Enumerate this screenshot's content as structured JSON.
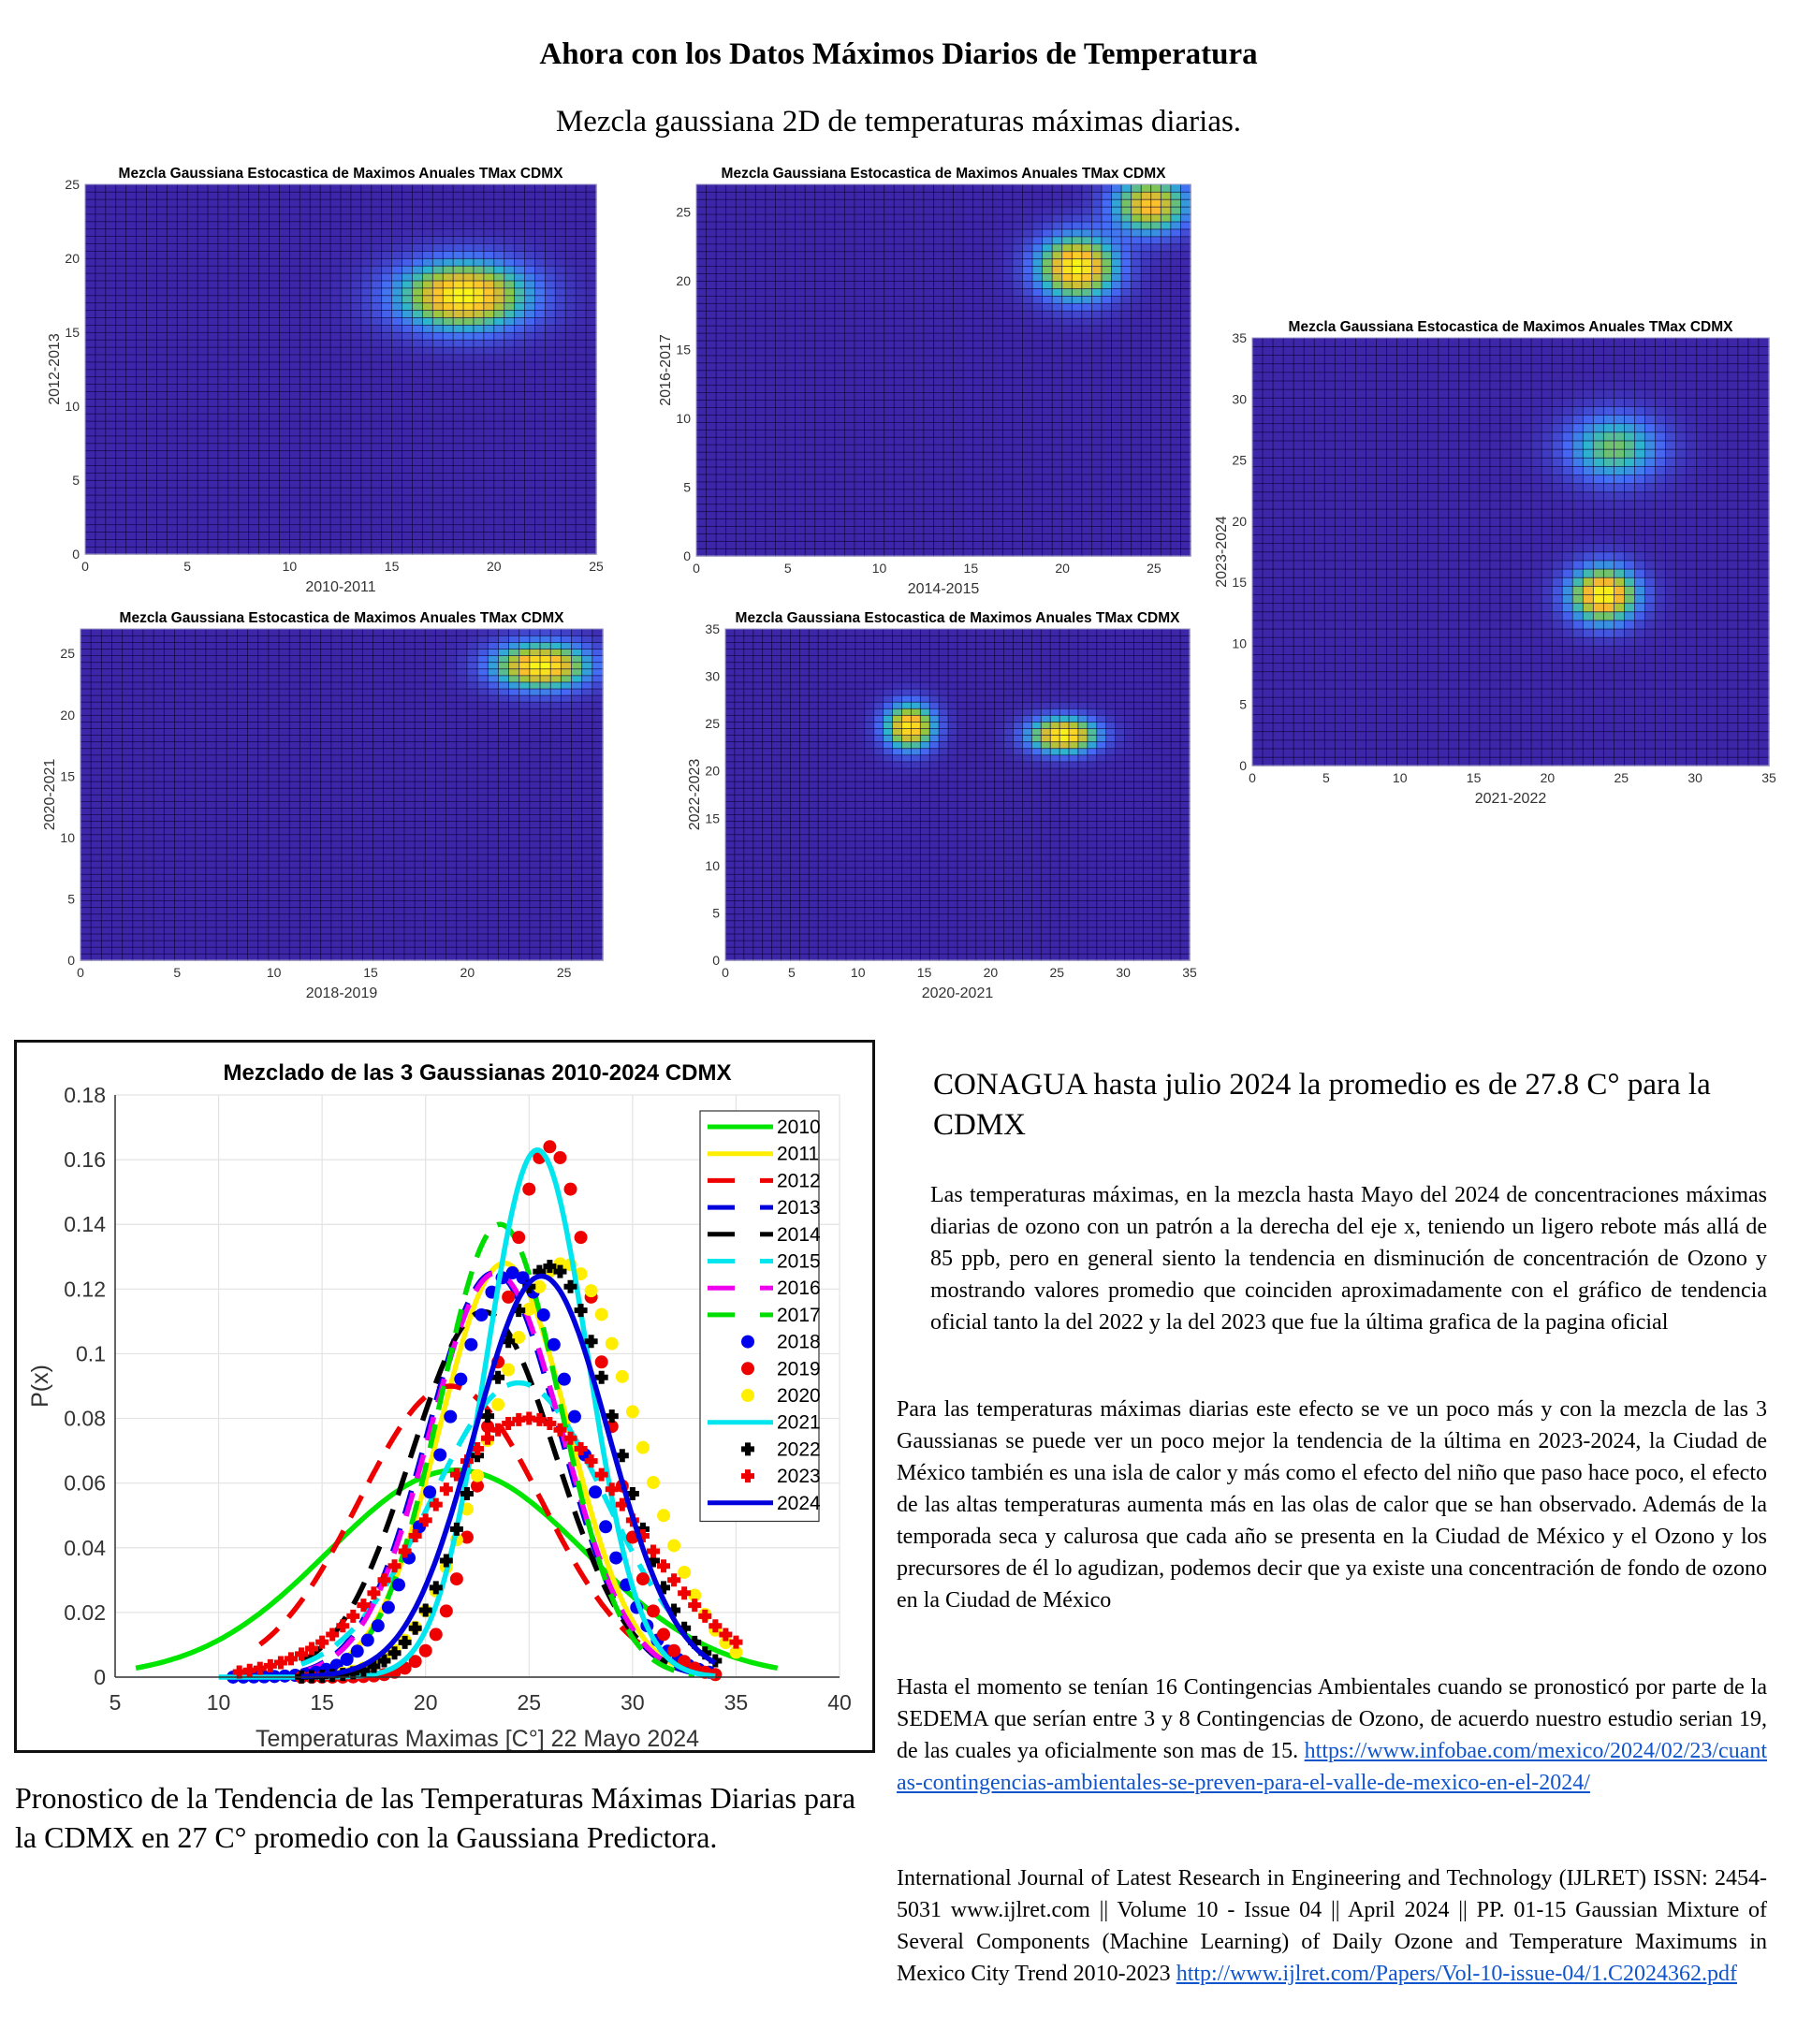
{
  "header": {
    "title": "Ahora con los Datos Máximos Diarios de Temperatura",
    "subtitle": "Mezcla gaussiana 2D de temperaturas máximas diarias."
  },
  "chart_data": [
    {
      "id": "heatmap-1",
      "type": "heatmap",
      "title": "Mezcla Gaussiana Estocastica de Maximos Anuales TMax CDMX",
      "xlabel": "2010-2011",
      "ylabel": "2012-2013",
      "xlim": [
        0,
        25
      ],
      "ylim": [
        0,
        25
      ],
      "xticks": [
        "0",
        "5",
        "10",
        "15",
        "20",
        "25"
      ],
      "yticks": [
        "0",
        "5",
        "10",
        "15",
        "20",
        "25"
      ],
      "peaks": [
        {
          "x": 18.5,
          "y": 17.5,
          "sx": 2.2,
          "sy": 1.6,
          "amp": 1.0
        }
      ],
      "colormap": [
        "#3e26a8",
        "#4669f5",
        "#2db5ce",
        "#8fc840",
        "#fbb92e",
        "#f9fb15"
      ]
    },
    {
      "id": "heatmap-2",
      "type": "heatmap",
      "title": "Mezcla Gaussiana Estocastica de Maximos Anuales TMax CDMX",
      "xlabel": "2014-2015",
      "ylabel": "2016-2017",
      "xlim": [
        0,
        27
      ],
      "ylim": [
        0,
        27
      ],
      "xticks": [
        "0",
        "5",
        "10",
        "15",
        "20",
        "25"
      ],
      "yticks": [
        "0",
        "5",
        "10",
        "15",
        "20",
        "25"
      ],
      "peaks": [
        {
          "x": 20.8,
          "y": 21.0,
          "sx": 1.5,
          "sy": 1.6,
          "amp": 1.0
        },
        {
          "x": 24.8,
          "y": 25.5,
          "sx": 1.4,
          "sy": 1.4,
          "amp": 0.85
        }
      ],
      "colormap": [
        "#3e26a8",
        "#4669f5",
        "#2db5ce",
        "#8fc840",
        "#fbb92e",
        "#f9fb15"
      ]
    },
    {
      "id": "heatmap-3",
      "type": "heatmap",
      "title": "Mezcla Gaussiana Estocastica de Maximos Anuales TMax CDMX",
      "xlabel": "2021-2022",
      "ylabel": "2023-2024",
      "xlim": [
        0,
        35
      ],
      "ylim": [
        0,
        35
      ],
      "xticks": [
        "0",
        "5",
        "10",
        "15",
        "20",
        "25",
        "30",
        "35"
      ],
      "yticks": [
        "0",
        "5",
        "10",
        "15",
        "20",
        "25",
        "30",
        "35"
      ],
      "peaks": [
        {
          "x": 23.8,
          "y": 14.0,
          "sx": 1.6,
          "sy": 1.6,
          "amp": 1.0
        },
        {
          "x": 24.5,
          "y": 26.0,
          "sx": 2.2,
          "sy": 1.9,
          "amp": 0.55
        }
      ],
      "colormap": [
        "#3e26a8",
        "#4669f5",
        "#2db5ce",
        "#8fc840",
        "#fbb92e",
        "#f9fb15"
      ]
    },
    {
      "id": "heatmap-4",
      "type": "heatmap",
      "title": "Mezcla Gaussiana Estocastica de Maximos Anuales TMax CDMX",
      "xlabel": "2018-2019",
      "ylabel": "2020-2021",
      "xlim": [
        0,
        27
      ],
      "ylim": [
        0,
        27
      ],
      "xticks": [
        "0",
        "5",
        "10",
        "15",
        "20",
        "25"
      ],
      "yticks": [
        "0",
        "5",
        "10",
        "15",
        "20",
        "25"
      ],
      "peaks": [
        {
          "x": 23.8,
          "y": 24.0,
          "sx": 1.7,
          "sy": 1.3,
          "amp": 1.0
        }
      ],
      "colormap": [
        "#3e26a8",
        "#4669f5",
        "#2db5ce",
        "#8fc840",
        "#fbb92e",
        "#f9fb15"
      ]
    },
    {
      "id": "heatmap-5",
      "type": "heatmap",
      "title": "Mezcla Gaussiana Estocastica de Maximos Anuales TMax CDMX",
      "xlabel": "2020-2021",
      "ylabel": "2022-2023",
      "xlim": [
        0,
        35
      ],
      "ylim": [
        0,
        35
      ],
      "xticks": [
        "0",
        "5",
        "10",
        "15",
        "20",
        "25",
        "30",
        "35"
      ],
      "yticks": [
        "0",
        "5",
        "10",
        "15",
        "20",
        "25",
        "30",
        "35"
      ],
      "peaks": [
        {
          "x": 13.9,
          "y": 24.7,
          "sx": 1.3,
          "sy": 1.7,
          "amp": 0.95
        },
        {
          "x": 25.5,
          "y": 23.8,
          "sx": 1.8,
          "sy": 1.3,
          "amp": 1.0
        }
      ],
      "colormap": [
        "#3e26a8",
        "#4669f5",
        "#2db5ce",
        "#8fc840",
        "#fbb92e",
        "#f9fb15"
      ]
    },
    {
      "id": "line-chart",
      "type": "line",
      "title": "Mezclado de las 3 Gaussianas 2010-2024 CDMX",
      "xlabel": "Temperaturas Maximas [C°] 22 Mayo 2024",
      "ylabel": "P(x)",
      "xlim": [
        5,
        40
      ],
      "ylim": [
        0,
        0.18
      ],
      "xticks": [
        "5",
        "10",
        "15",
        "20",
        "25",
        "30",
        "35",
        "40"
      ],
      "yticks": [
        "0",
        "0.02",
        "0.04",
        "0.06",
        "0.08",
        "0.1",
        "0.12",
        "0.14",
        "0.16",
        "0.18"
      ],
      "grid": true,
      "legend_position": "top-right",
      "series": [
        {
          "name": "2010",
          "color": "#00e600",
          "style": "solid",
          "mean": 21.5,
          "sigma": 6.2,
          "peak": 0.064,
          "xrange": [
            6,
            37
          ]
        },
        {
          "name": "2011",
          "color": "#ffee00",
          "style": "solid",
          "mean": 23.8,
          "sigma": 3.1,
          "peak": 0.128,
          "xrange": [
            14,
            34
          ]
        },
        {
          "name": "2012",
          "color": "#ee0000",
          "style": "dashed",
          "mean": 21.2,
          "sigma": 4.4,
          "peak": 0.09,
          "xrange": [
            12,
            31
          ]
        },
        {
          "name": "2013",
          "color": "#0000dd",
          "style": "dashed",
          "mean": 23.3,
          "sigma": 3.2,
          "peak": 0.125,
          "xrange": [
            14,
            33
          ]
        },
        {
          "name": "2014",
          "color": "#000000",
          "style": "dashed",
          "mean": 22.8,
          "sigma": 3.5,
          "peak": 0.113,
          "xrange": [
            14,
            33
          ]
        },
        {
          "name": "2015",
          "color": "#00e5ee",
          "style": "dashed",
          "mean": 24.5,
          "sigma": 4.2,
          "peak": 0.091,
          "xrange": [
            14,
            32
          ]
        },
        {
          "name": "2016",
          "color": "#ee00ee",
          "style": "dashed",
          "mean": 23.4,
          "sigma": 3.2,
          "peak": 0.125,
          "xrange": [
            14,
            32
          ]
        },
        {
          "name": "2017",
          "color": "#00dd00",
          "style": "dashed",
          "mean": 23.6,
          "sigma": 2.9,
          "peak": 0.14,
          "xrange": [
            16,
            33
          ]
        },
        {
          "name": "2018",
          "color": "#0000ee",
          "style": "dots",
          "mean": 24.2,
          "sigma": 3.2,
          "peak": 0.125,
          "xrange": [
            10.7,
            34
          ]
        },
        {
          "name": "2019",
          "color": "#ee0000",
          "style": "dots",
          "mean": 26.0,
          "sigma": 2.45,
          "peak": 0.164,
          "xrange": [
            14,
            34
          ]
        },
        {
          "name": "2020",
          "color": "#ffee00",
          "style": "dots",
          "mean": 26.7,
          "sigma": 3.5,
          "peak": 0.128,
          "xrange": [
            16,
            35
          ]
        },
        {
          "name": "2021",
          "color": "#00e5ee",
          "style": "solid",
          "mean": 25.4,
          "sigma": 2.45,
          "peak": 0.163,
          "xrange": [
            10,
            34
          ]
        },
        {
          "name": "2022",
          "color": "#000000",
          "style": "plus",
          "mean": 26.0,
          "sigma": 3.15,
          "peak": 0.127,
          "xrange": [
            14,
            34
          ]
        },
        {
          "name": "2023",
          "color": "#ee0000",
          "style": "plus",
          "mean": 25.0,
          "sigma": 5.0,
          "peak": 0.08,
          "xrange": [
            11,
            35
          ]
        },
        {
          "name": "2024",
          "color": "#0000dd",
          "style": "solid",
          "mean": 25.6,
          "sigma": 3.25,
          "peak": 0.124,
          "xrange": [
            14,
            34
          ]
        }
      ]
    }
  ],
  "right_text": {
    "conagua": "CONAGUA hasta julio 2024 la promedio es de 27.8 C° para la CDMX",
    "para1": "Las temperaturas máximas, en la mezcla hasta Mayo del 2024 de concentraciones máximas diarias de ozono con un patrón a la derecha del eje x, teniendo un ligero rebote más allá de 85 ppb, pero en general siento la tendencia en disminución de concentración de Ozono y mostrando valores promedio que coinciden aproximadamente con el gráfico de tendencia oficial tanto la del 2022 y la del 2023 que fue la última grafica de la pagina oficial",
    "para2": "Para las temperaturas máximas diarias este efecto se ve un poco más y con la mezcla de las 3 Gaussianas se puede ver un poco mejor la tendencia de la última en 2023-2024, la Ciudad de México también es una isla de calor y más como el efecto del niño que paso hace poco, el efecto de las altas temperaturas aumenta más en las olas de calor que se han observado. Además de la temporada seca y calurosa que cada año se presenta en la Ciudad de México y el Ozono y los precursores de él lo agudizan, podemos decir que ya existe una concentración de fondo de ozono en la Ciudad de México",
    "para3": "Hasta el momento se tenían 16 Contingencias Ambientales cuando se pronosticó por parte de la SEDEMA que serían entre 3 y 8 Contingencias de Ozono, de acuerdo nuestro estudio serian 19, de las cuales ya oficialmente son mas de 15.",
    "link1": "https://www.infobae.com/mexico/2024/02/23/cuantas-contingencias-ambientales-se-preven-para-el-valle-de-mexico-en-el-2024/",
    "para4": "International Journal of Latest Research in Engineering and Technology (IJLRET) ISSN: 2454-5031 www.ijlret.com || Volume 10 - Issue 04 || April 2024 || PP. 01-15 Gaussian Mixture of Several Components (Machine Learning) of Daily Ozone and Temperature Maximums in Mexico City Trend 2010-2023",
    "link2": "http://www.ijlret.com/Papers/Vol-10-issue-04/1.C2024362.pdf"
  },
  "caption": "Pronostico de la Tendencia de las Temperaturas Máximas Diarias para la CDMX en 27 C° promedio con la Gaussiana Predictora."
}
